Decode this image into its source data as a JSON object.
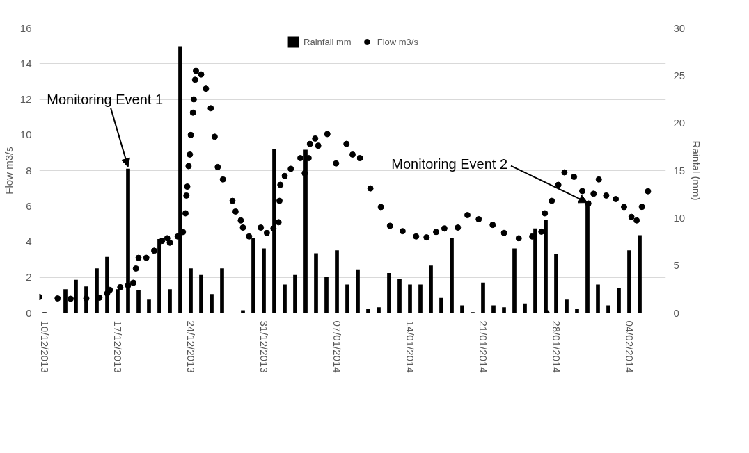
{
  "chart_data": {
    "type": "bar",
    "ylabel": "Flow m3/s",
    "y2label": "Rainfal (mm)",
    "xlim": [
      "2013-12-09T12:00",
      "2014-02-07T12:00"
    ],
    "xticks": [
      {
        "value": "2013-12-10",
        "label": "10/12/2013"
      },
      {
        "value": "2013-12-17",
        "label": "17/12/2013"
      },
      {
        "value": "2013-12-24",
        "label": "24/12/2013"
      },
      {
        "value": "2013-12-31",
        "label": "31/12/2013"
      },
      {
        "value": "2014-01-07",
        "label": "07/01/2014"
      },
      {
        "value": "2014-01-14",
        "label": "14/01/2014"
      },
      {
        "value": "2014-01-21",
        "label": "21/01/2014"
      },
      {
        "value": "2014-01-28",
        "label": "28/01/2014"
      },
      {
        "value": "2014-02-04",
        "label": "04/02/2014"
      }
    ],
    "ylim": [
      0,
      16
    ],
    "yticks": [
      0,
      2,
      4,
      6,
      8,
      10,
      12,
      14,
      16
    ],
    "y2lim": [
      0,
      30
    ],
    "y2ticks": [
      0,
      5,
      10,
      15,
      20,
      25,
      30
    ],
    "grid": "y",
    "legend": "top",
    "annotations": [
      {
        "text": "Monitoring Event 1",
        "x": "2013-12-18",
        "y": 8.2
      },
      {
        "text": "Monitoring Event 2",
        "x": "2014-01-31",
        "y": 6.2
      }
    ],
    "series": [
      {
        "name": "Rainfall mm",
        "axis": "y2",
        "color": "#000000",
        "x": [
          "2013-12-10",
          "2013-12-12",
          "2013-12-13",
          "2013-12-14",
          "2013-12-15",
          "2013-12-16",
          "2013-12-17",
          "2013-12-18",
          "2013-12-19",
          "2013-12-20",
          "2013-12-21",
          "2013-12-22",
          "2013-12-23",
          "2013-12-24",
          "2013-12-25",
          "2013-12-26",
          "2013-12-27",
          "2013-12-29",
          "2013-12-30",
          "2013-12-31",
          "2014-01-01",
          "2014-01-02",
          "2014-01-03",
          "2014-01-04",
          "2014-01-05",
          "2014-01-06",
          "2014-01-07",
          "2014-01-08",
          "2014-01-09",
          "2014-01-10",
          "2014-01-11",
          "2014-01-12",
          "2014-01-13",
          "2014-01-14",
          "2014-01-15",
          "2014-01-16",
          "2014-01-17",
          "2014-01-18",
          "2014-01-19",
          "2014-01-20",
          "2014-01-21",
          "2014-01-22",
          "2014-01-23",
          "2014-01-24",
          "2014-01-25",
          "2014-01-26",
          "2014-01-27",
          "2014-01-28",
          "2014-01-29",
          "2014-01-30",
          "2014-01-31",
          "2014-02-01",
          "2014-02-02",
          "2014-02-03",
          "2014-02-04",
          "2014-02-05"
        ],
        "values": [
          0.1,
          2.5,
          3.5,
          2.8,
          4.7,
          5.9,
          2.5,
          15.2,
          2.4,
          1.4,
          7.8,
          2.5,
          28.1,
          4.7,
          4.0,
          2.0,
          4.7,
          0.3,
          7.9,
          6.8,
          17.3,
          3.0,
          4.0,
          17.2,
          6.3,
          3.8,
          6.6,
          3.0,
          4.6,
          0.4,
          0.6,
          4.2,
          3.6,
          3.0,
          3.0,
          5.0,
          1.6,
          7.9,
          0.8,
          0.1,
          3.2,
          0.8,
          0.6,
          6.8,
          1.0,
          8.9,
          9.8,
          6.2,
          1.4,
          0.4,
          11.6,
          3.0,
          0.8,
          2.6,
          6.6,
          8.2
        ]
      },
      {
        "name": "Flow m3/s",
        "type": "scatter",
        "marker": "circle",
        "color": "#000000",
        "x": [
          "2013-12-09T12:00",
          "2013-12-11T06:00",
          "2013-12-12T12:00",
          "2013-12-14T00:00",
          "2013-12-15T06:00",
          "2013-12-16T00:00",
          "2013-12-16T06:00",
          "2013-12-17T06:00",
          "2013-12-18T00:00",
          "2013-12-18T12:00",
          "2013-12-18T18:00",
          "2013-12-19T00:00",
          "2013-12-19T18:00",
          "2013-12-20T12:00",
          "2013-12-21T06:00",
          "2013-12-21T18:00",
          "2013-12-22T00:00",
          "2013-12-22T18:00",
          "2013-12-23T06:00",
          "2013-12-23T12:00",
          "2013-12-23T14:00",
          "2013-12-23T16:00",
          "2013-12-23T19:00",
          "2013-12-23T22:00",
          "2013-12-24T00:00",
          "2013-12-24T05:00",
          "2013-12-24T07:00",
          "2013-12-24T10:00",
          "2013-12-24T12:00",
          "2013-12-25T00:00",
          "2013-12-25T11:00",
          "2013-12-25T22:00",
          "2013-12-26T07:00",
          "2013-12-26T14:00",
          "2013-12-27T02:00",
          "2013-12-28T00:00",
          "2013-12-28T07:00",
          "2013-12-28T19:00",
          "2013-12-29T00:00",
          "2013-12-29T14:00",
          "2013-12-30T17:00",
          "2013-12-31T07:00",
          "2013-12-31T22:00",
          "2014-01-01T10:00",
          "2014-01-01T12:00",
          "2014-01-01T14:00",
          "2014-01-02T00:00",
          "2014-01-02T14:00",
          "2014-01-03T12:00",
          "2014-01-03T22:00",
          "2014-01-04T07:00",
          "2014-01-04T10:00",
          "2014-01-04T22:00",
          "2014-01-05T05:00",
          "2014-01-06T02:00",
          "2014-01-06T22:00",
          "2014-01-07T22:00",
          "2014-01-08T12:00",
          "2014-01-09T05:00",
          "2014-01-10T05:00",
          "2014-01-11T05:00",
          "2014-01-12T02:00",
          "2014-01-13T07:00",
          "2014-01-14T14:00",
          "2014-01-15T14:00",
          "2014-01-16T12:00",
          "2014-01-17T07:00",
          "2014-01-18T14:00",
          "2014-01-19T12:00",
          "2014-01-20T14:00",
          "2014-01-21T22:00",
          "2014-01-23T00:00",
          "2014-01-24T10:00",
          "2014-01-25T17:00",
          "2014-01-26T14:00",
          "2014-01-26T22:00",
          "2014-01-27T02:00",
          "2014-01-27T14:00",
          "2014-01-28T05:00",
          "2014-01-28T19:00",
          "2014-01-29T17:00",
          "2014-01-30T12:00",
          "2014-01-31T02:00",
          "2014-01-31T14:00",
          "2014-02-01T02:00",
          "2014-02-01T19:00",
          "2014-02-02T17:00",
          "2014-02-03T12:00",
          "2014-02-04T05:00",
          "2014-02-04T17:00",
          "2014-02-05T05:00",
          "2014-02-05T19:00"
        ],
        "values": [
          0.9,
          0.82,
          0.8,
          0.82,
          0.86,
          1.1,
          1.3,
          1.45,
          1.55,
          1.7,
          2.5,
          3.1,
          3.1,
          3.5,
          4.05,
          4.2,
          3.95,
          4.3,
          4.55,
          5.6,
          6.6,
          7.1,
          8.25,
          8.9,
          10.0,
          11.25,
          12.0,
          13.1,
          13.6,
          13.4,
          12.6,
          11.5,
          9.9,
          8.2,
          7.5,
          6.3,
          5.7,
          5.2,
          4.8,
          4.3,
          4.8,
          4.5,
          4.75,
          5.1,
          6.3,
          7.2,
          7.7,
          8.1,
          8.7,
          7.85,
          8.7,
          9.5,
          9.8,
          9.4,
          10.05,
          8.4,
          9.5,
          8.9,
          8.7,
          7.0,
          5.95,
          4.9,
          4.6,
          4.3,
          4.25,
          4.55,
          4.75,
          4.8,
          5.5,
          5.27,
          4.95,
          4.5,
          4.2,
          4.3,
          4.57,
          5.6,
          0,
          6.3,
          7.2,
          7.9,
          7.65,
          6.85,
          6.15,
          6.7,
          7.5,
          6.6,
          6.4,
          5.95,
          5.4,
          5.2,
          5.96,
          6.84
        ]
      }
    ]
  }
}
